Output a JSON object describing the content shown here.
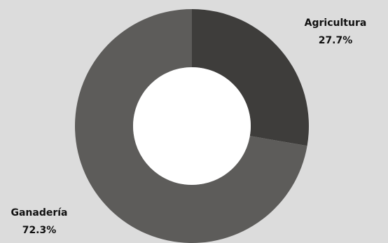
{
  "chart_data": {
    "type": "pie",
    "donut": true,
    "categories": [
      "Agricultura",
      "Ganadería"
    ],
    "values": [
      27.7,
      72.3
    ],
    "value_labels": [
      "27.7%",
      "72.3%"
    ],
    "colors": [
      "#3e3d3b",
      "#5d5c5a"
    ],
    "background": "#dcdcdc",
    "title": ""
  }
}
